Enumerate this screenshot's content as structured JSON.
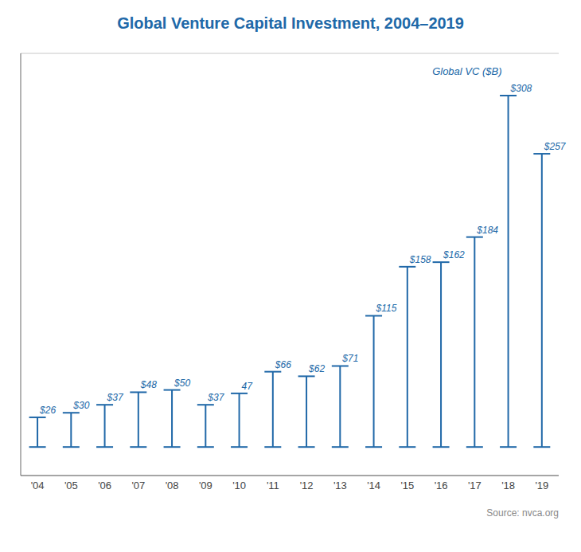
{
  "chart_data": {
    "type": "stem",
    "title": "Global Venture Capital Investment, 2004–2019",
    "categories": [
      "'04",
      "'05",
      "'06",
      "'07",
      "'08",
      "'09",
      "'10",
      "'11",
      "'12",
      "'13",
      "'14",
      "'15",
      "'16",
      "'17",
      "'18",
      "'19"
    ],
    "values": [
      26,
      30,
      37,
      48,
      50,
      37,
      47,
      66,
      62,
      71,
      115,
      158,
      162,
      184,
      308,
      257
    ],
    "value_labels": [
      "$26",
      "$30",
      "$37",
      "$48",
      "$50",
      "$37",
      "47",
      "$66",
      "$62",
      "$71",
      "$115",
      "$158",
      "$162",
      "$184",
      "$308",
      "$257"
    ],
    "data_labels": true,
    "color": "#2068a8",
    "ylim": [
      -25,
      345
    ],
    "yticks": [
      0,
      50,
      100,
      150,
      200,
      250,
      300
    ],
    "grid": true,
    "tick_labels": "x",
    "annotations": [
      "Global VC ($B)",
      "Source: nvca.org"
    ]
  }
}
